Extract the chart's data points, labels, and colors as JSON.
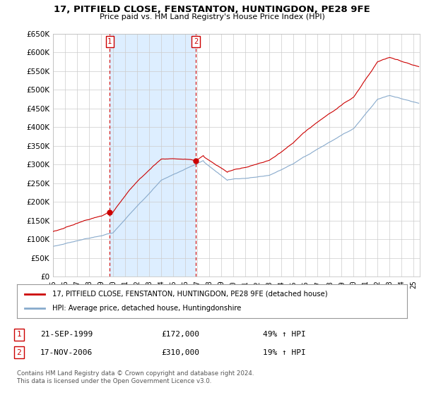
{
  "title": "17, PITFIELD CLOSE, FENSTANTON, HUNTINGDON, PE28 9FE",
  "subtitle": "Price paid vs. HM Land Registry's House Price Index (HPI)",
  "ylim": [
    0,
    650000
  ],
  "yticks": [
    0,
    50000,
    100000,
    150000,
    200000,
    250000,
    300000,
    350000,
    400000,
    450000,
    500000,
    550000,
    600000,
    650000
  ],
  "background_color": "#ffffff",
  "grid_color": "#cccccc",
  "shade_color": "#ddeeff",
  "legend_entry1": "17, PITFIELD CLOSE, FENSTANTON, HUNTINGDON, PE28 9FE (detached house)",
  "legend_entry2": "HPI: Average price, detached house, Huntingdonshire",
  "sale1_date": "21-SEP-1999",
  "sale1_price": "£172,000",
  "sale1_hpi": "49% ↑ HPI",
  "sale2_date": "17-NOV-2006",
  "sale2_price": "£310,000",
  "sale2_hpi": "19% ↑ HPI",
  "footer": "Contains HM Land Registry data © Crown copyright and database right 2024.\nThis data is licensed under the Open Government Licence v3.0.",
  "red_color": "#cc0000",
  "blue_color": "#88aacc",
  "sale1_x": 1999.72,
  "sale1_y": 172000,
  "sale2_x": 2006.88,
  "sale2_y": 310000,
  "xlim_left": 1995.0,
  "xlim_right": 2025.5
}
